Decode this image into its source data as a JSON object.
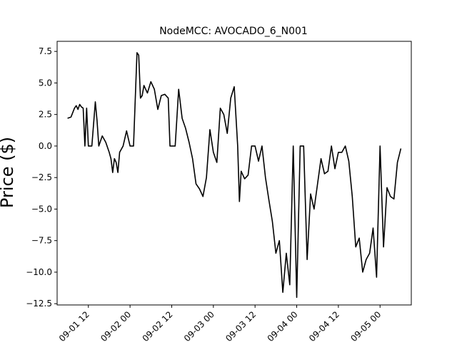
{
  "chart_data": {
    "type": "line",
    "title": "NodeMCC: AVOCADO_6_N001",
    "xlabel": "",
    "ylabel": "Price ($)",
    "xlim": [
      "2022-09-01 03:00",
      "2022-09-05 09:00"
    ],
    "ylim": [
      -12.6,
      8.3
    ],
    "grid": false,
    "legend": "none",
    "x_ticks": [
      "2022-09-01 12:00",
      "2022-09-02 00:00",
      "2022-09-02 12:00",
      "2022-09-03 00:00",
      "2022-09-03 12:00",
      "2022-09-04 00:00",
      "2022-09-04 12:00",
      "2022-09-05 00:00"
    ],
    "x_tick_labels": [
      "09-01 12",
      "09-02 00",
      "09-02 12",
      "09-03 00",
      "09-03 12",
      "09-04 00",
      "09-04 12",
      "09-05 00"
    ],
    "y_ticks": [
      7.5,
      5.0,
      2.5,
      0.0,
      -2.5,
      -5.0,
      -7.5,
      -10.0,
      -12.5
    ],
    "y_tick_labels": [
      "7.5",
      "5.0",
      "2.5",
      "0.0",
      "−2.5",
      "−5.0",
      "−7.5",
      "−10.0",
      "−12.5"
    ],
    "series": [
      {
        "name": "",
        "color": "#000000",
        "x": [
          "2022-09-01 06:00",
          "2022-09-01 07:00",
          "2022-09-01 08:00",
          "2022-09-01 08:30",
          "2022-09-01 09:00",
          "2022-09-01 09:30",
          "2022-09-01 10:00",
          "2022-09-01 10:30",
          "2022-09-01 11:00",
          "2022-09-01 11:30",
          "2022-09-01 12:00",
          "2022-09-01 12:30",
          "2022-09-01 13:00",
          "2022-09-01 14:00",
          "2022-09-01 14:30",
          "2022-09-01 15:00",
          "2022-09-01 16:00",
          "2022-09-01 17:00",
          "2022-09-01 18:00",
          "2022-09-01 18:30",
          "2022-09-01 19:00",
          "2022-09-01 19:30",
          "2022-09-01 20:00",
          "2022-09-01 20:30",
          "2022-09-01 21:00",
          "2022-09-01 22:00",
          "2022-09-01 23:00",
          "2022-09-02 00:00",
          "2022-09-02 00:30",
          "2022-09-02 01:00",
          "2022-09-02 02:00",
          "2022-09-02 02:30",
          "2022-09-02 03:00",
          "2022-09-02 03:30",
          "2022-09-02 04:00",
          "2022-09-02 05:00",
          "2022-09-02 06:00",
          "2022-09-02 07:00",
          "2022-09-02 08:00",
          "2022-09-02 09:00",
          "2022-09-02 10:00",
          "2022-09-02 11:00",
          "2022-09-02 11:30",
          "2022-09-02 12:00",
          "2022-09-02 13:00",
          "2022-09-02 14:00",
          "2022-09-02 15:00",
          "2022-09-02 16:00",
          "2022-09-02 17:00",
          "2022-09-02 18:00",
          "2022-09-02 19:00",
          "2022-09-02 20:00",
          "2022-09-02 21:00",
          "2022-09-02 22:00",
          "2022-09-02 23:00",
          "2022-09-03 00:00",
          "2022-09-03 01:00",
          "2022-09-03 02:00",
          "2022-09-03 03:00",
          "2022-09-03 04:00",
          "2022-09-03 05:00",
          "2022-09-03 06:00",
          "2022-09-03 07:00",
          "2022-09-03 07:30",
          "2022-09-03 08:00",
          "2022-09-03 09:00",
          "2022-09-03 10:00",
          "2022-09-03 11:00",
          "2022-09-03 12:00",
          "2022-09-03 13:00",
          "2022-09-03 14:00",
          "2022-09-03 15:00",
          "2022-09-03 16:00",
          "2022-09-03 17:00",
          "2022-09-03 18:00",
          "2022-09-03 19:00",
          "2022-09-03 20:00",
          "2022-09-03 21:00",
          "2022-09-03 22:00",
          "2022-09-03 23:00",
          "2022-09-04 00:00",
          "2022-09-04 01:00",
          "2022-09-04 02:00",
          "2022-09-04 03:00",
          "2022-09-04 04:00",
          "2022-09-04 05:00",
          "2022-09-04 06:00",
          "2022-09-04 07:00",
          "2022-09-04 08:00",
          "2022-09-04 09:00",
          "2022-09-04 10:00",
          "2022-09-04 11:00",
          "2022-09-04 12:00",
          "2022-09-04 13:00",
          "2022-09-04 14:00",
          "2022-09-04 15:00",
          "2022-09-04 16:00",
          "2022-09-04 17:00",
          "2022-09-04 18:00",
          "2022-09-04 19:00",
          "2022-09-04 20:00",
          "2022-09-04 21:00",
          "2022-09-04 22:00",
          "2022-09-04 23:00",
          "2022-09-05 00:00",
          "2022-09-05 01:00",
          "2022-09-05 02:00",
          "2022-09-05 03:00",
          "2022-09-05 04:00",
          "2022-09-05 05:00",
          "2022-09-05 06:00"
        ],
        "y": [
          2.2,
          2.3,
          3.0,
          3.2,
          2.9,
          3.3,
          3.1,
          3.0,
          0.0,
          3.0,
          0.0,
          0.0,
          0.0,
          3.5,
          2.0,
          0.0,
          0.8,
          0.3,
          -0.5,
          -1.0,
          -2.1,
          -1.0,
          -1.3,
          -2.1,
          -0.5,
          0.0,
          1.2,
          0.0,
          0.0,
          0.0,
          7.4,
          7.2,
          3.8,
          4.0,
          4.8,
          4.2,
          5.1,
          4.5,
          2.9,
          4.0,
          4.1,
          3.8,
          0.0,
          0.0,
          0.0,
          4.5,
          2.2,
          1.4,
          0.3,
          -1.0,
          -3.0,
          -3.4,
          -4.0,
          -2.5,
          1.3,
          -0.5,
          -1.3,
          3.0,
          2.5,
          1.0,
          3.8,
          4.7,
          0.0,
          -4.4,
          -2.0,
          -2.6,
          -2.3,
          0.0,
          0.0,
          -1.2,
          0.0,
          -2.5,
          -4.3,
          -6.0,
          -8.5,
          -7.5,
          -11.6,
          -8.5,
          -11.0,
          0.0,
          -12.0,
          0.0,
          0.0,
          -9.0,
          -3.8,
          -5.0,
          -3.0,
          -1.0,
          -2.2,
          -2.0,
          0.0,
          -1.8,
          -0.5,
          -0.5,
          0.0,
          -1.2,
          -4.0,
          -8.0,
          -7.3,
          -10.0,
          -9.0,
          -8.5,
          -6.5,
          -10.4,
          0.0,
          -8.0,
          -3.3,
          -4.0,
          -4.2,
          -1.3,
          -0.2
        ]
      }
    ]
  }
}
